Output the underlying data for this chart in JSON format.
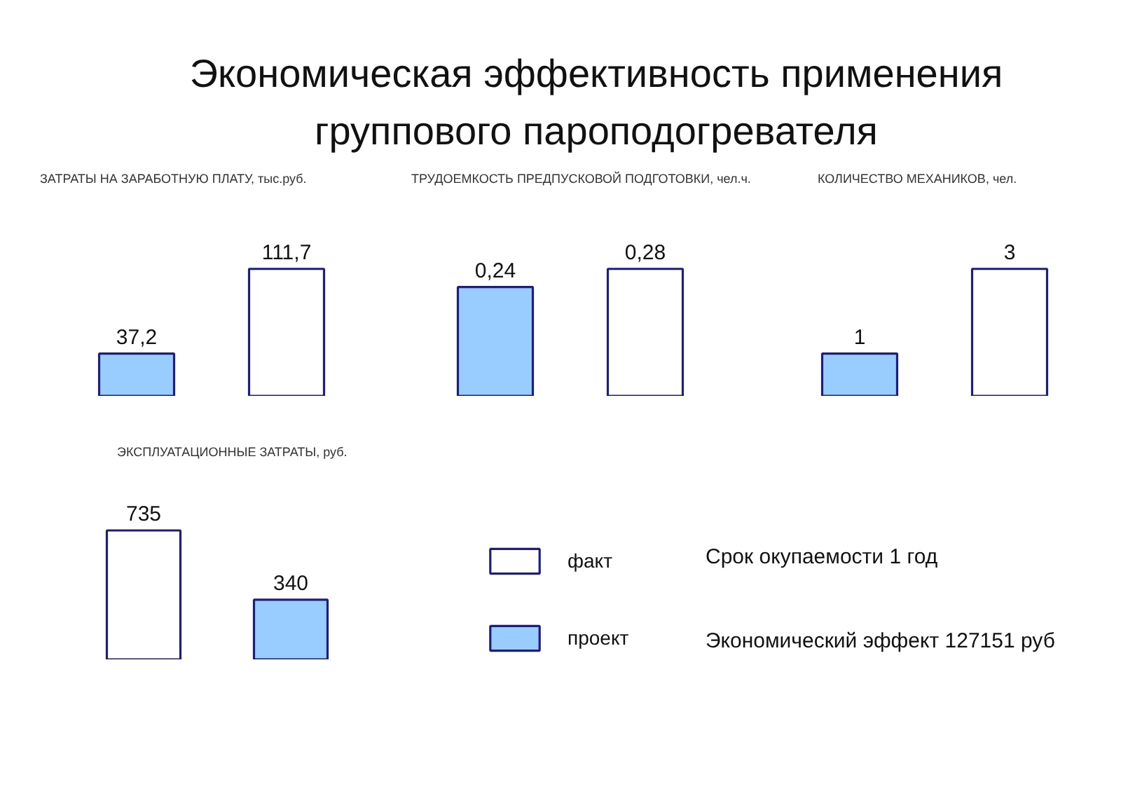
{
  "chart_data": [
    {
      "type": "other",
      "title": "Экономическая эффективность применения\nгруппового пароподогревателя"
    },
    {
      "type": "bar",
      "title": "ЗАТРАТЫ НА ЗАРАБОТНУЮ ПЛАТУ, тыс.руб.",
      "categories": [
        null,
        null
      ],
      "values": [
        37.2,
        111.7
      ],
      "colors": [
        "#99ccff",
        "#ffffff"
      ],
      "value_labels": [
        "37,2",
        "111,7"
      ],
      "tick_labels": false
    },
    {
      "type": "bar",
      "title": "ТРУДОЕМКОСТЬ ПРЕДПУСКОВОЙ ПОДГОТОВКИ, чел.ч.",
      "categories": [
        null,
        null
      ],
      "values": [
        0.24,
        0.28
      ],
      "colors": [
        "#99ccff",
        "#ffffff"
      ],
      "value_labels": [
        "0,24",
        "0,28"
      ],
      "tick_labels": false
    },
    {
      "type": "bar",
      "title": "КОЛИЧЕСТВО МЕХАНИКОВ, чел.",
      "categories": [
        null,
        null
      ],
      "values": [
        1,
        3
      ],
      "colors": [
        "#99ccff",
        "#ffffff"
      ],
      "data_labels": true,
      "tick_labels": false
    },
    {
      "type": "bar",
      "title": "ЭКСПЛУАТАЦИОННЫЕ ЗАТРАТЫ, руб.",
      "categories": [
        null,
        null
      ],
      "stacked": true,
      "series": [
        {
          "name": "факт",
          "color": "#ffffff",
          "values": [
            735,
            null
          ]
        },
        {
          "name": "проект",
          "color": "#99ccff",
          "values": [
            null,
            340
          ]
        }
      ],
      "data_labels": true,
      "legend": "right",
      "tick_labels": false,
      "annotations": [
        "Срок окупаемости 1 год",
        "Экономический эффект 127151 руб"
      ]
    }
  ]
}
